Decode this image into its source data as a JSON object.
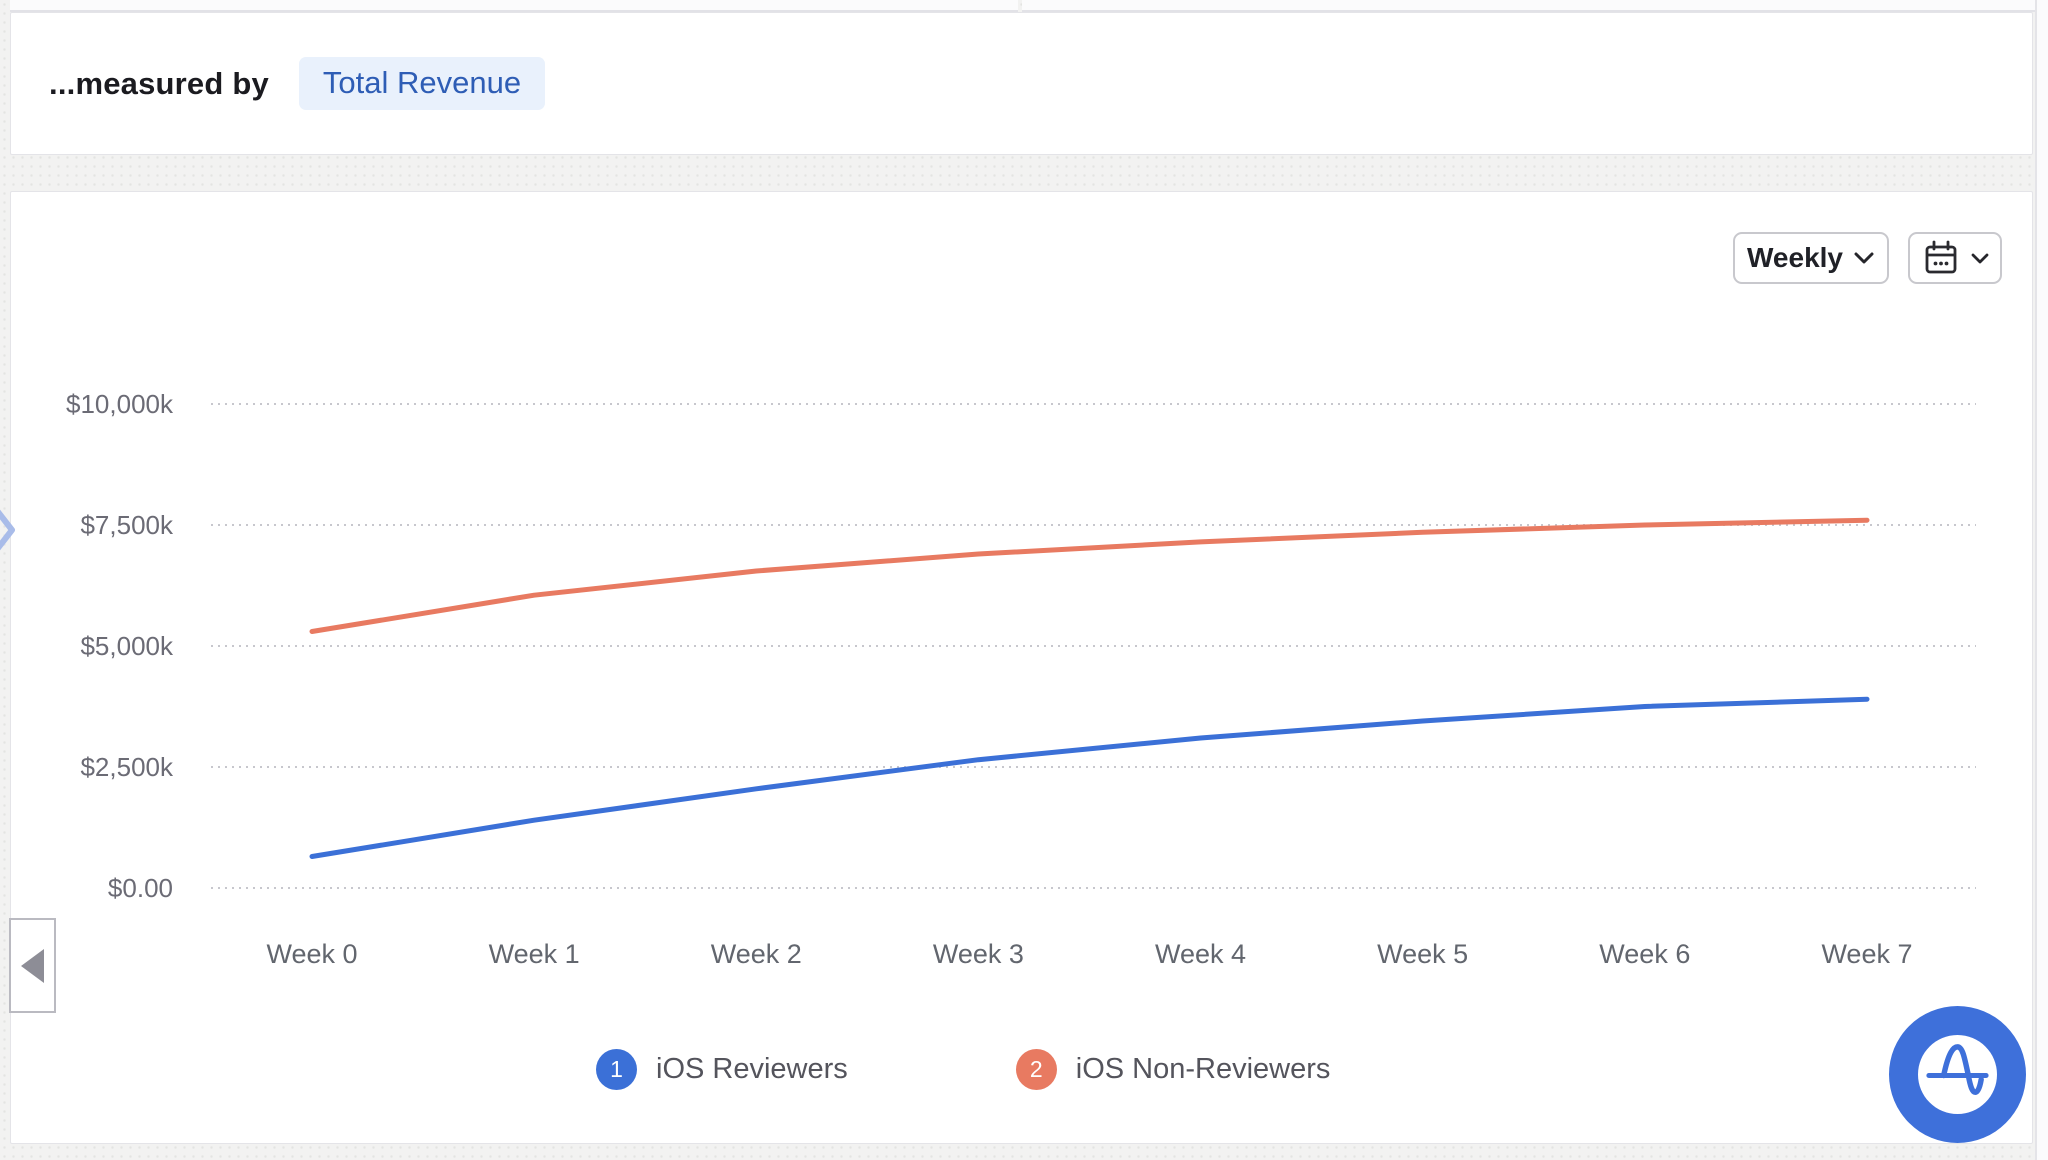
{
  "measure_bar": {
    "label": "...measured by",
    "metric": "Total Revenue"
  },
  "toolbar": {
    "granularity": "Weekly"
  },
  "chart_data": {
    "type": "line",
    "title": "",
    "xlabel": "",
    "ylabel": "",
    "x": [
      "Week 0",
      "Week 1",
      "Week 2",
      "Week 3",
      "Week 4",
      "Week 5",
      "Week 6",
      "Week 7"
    ],
    "series": [
      {
        "name": "iOS Reviewers",
        "legend_index": "1",
        "color": "#3b70d7",
        "values_k_usd": [
          650,
          1400,
          2050,
          2650,
          3100,
          3450,
          3750,
          3900
        ]
      },
      {
        "name": "iOS Non-Reviewers",
        "legend_index": "2",
        "color": "#e87a61",
        "values_k_usd": [
          5300,
          6050,
          6550,
          6900,
          7150,
          7350,
          7500,
          7600
        ]
      }
    ],
    "y_ticks": [
      {
        "label": "$0.00",
        "value": 0
      },
      {
        "label": "$2,500k",
        "value": 2500
      },
      {
        "label": "$5,000k",
        "value": 5000
      },
      {
        "label": "$7,500k",
        "value": 7500
      },
      {
        "label": "$10,000k",
        "value": 10000
      }
    ],
    "ylim": [
      0,
      10000
    ],
    "grid": "horizontal-dotted",
    "legend_position": "bottom",
    "units": "USD thousands"
  },
  "icons": {
    "chevron_down": "v-shaped dropdown arrow",
    "calendar": "calendar with three dots",
    "collapse_left": "left-pointing triangle panel collapse",
    "expand_right": "right-pointing chevron on left edge",
    "amplitude_logo": "blue circle with A-wave glyph"
  },
  "colors": {
    "series_blue": "#3b70d7",
    "series_orange": "#e87a61",
    "pill_bg": "#e9f1fc",
    "pill_text": "#2e5db5",
    "gridline": "#c7c7cd",
    "axis_text": "#6b6b75",
    "logo_blue": "#3e70da"
  }
}
